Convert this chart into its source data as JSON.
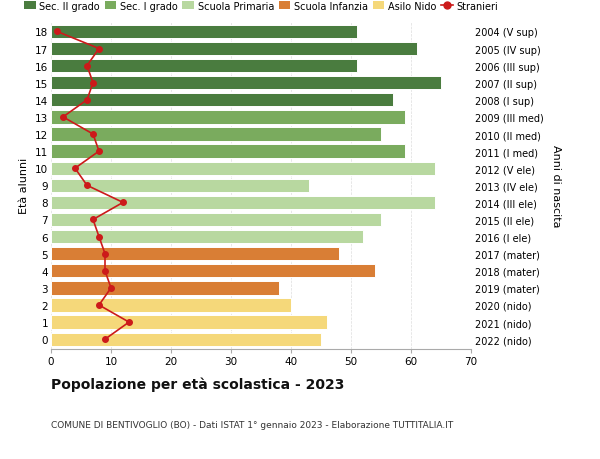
{
  "ages": [
    18,
    17,
    16,
    15,
    14,
    13,
    12,
    11,
    10,
    9,
    8,
    7,
    6,
    5,
    4,
    3,
    2,
    1,
    0
  ],
  "right_labels": [
    "2004 (V sup)",
    "2005 (IV sup)",
    "2006 (III sup)",
    "2007 (II sup)",
    "2008 (I sup)",
    "2009 (III med)",
    "2010 (II med)",
    "2011 (I med)",
    "2012 (V ele)",
    "2013 (IV ele)",
    "2014 (III ele)",
    "2015 (II ele)",
    "2016 (I ele)",
    "2017 (mater)",
    "2018 (mater)",
    "2019 (mater)",
    "2020 (nido)",
    "2021 (nido)",
    "2022 (nido)"
  ],
  "bar_values": [
    51,
    61,
    51,
    65,
    57,
    59,
    55,
    59,
    64,
    43,
    64,
    55,
    52,
    48,
    54,
    38,
    40,
    46,
    45
  ],
  "bar_colors": [
    "#4a7c3f",
    "#4a7c3f",
    "#4a7c3f",
    "#4a7c3f",
    "#4a7c3f",
    "#7aab5e",
    "#7aab5e",
    "#7aab5e",
    "#b8d8a0",
    "#b8d8a0",
    "#b8d8a0",
    "#b8d8a0",
    "#b8d8a0",
    "#d97e35",
    "#d97e35",
    "#d97e35",
    "#f5d87a",
    "#f5d87a",
    "#f5d87a"
  ],
  "stranieri_values": [
    1,
    8,
    6,
    7,
    6,
    2,
    7,
    8,
    4,
    6,
    12,
    7,
    8,
    9,
    9,
    10,
    8,
    13,
    9
  ],
  "legend_items": [
    {
      "label": "Sec. II grado",
      "color": "#4a7c3f"
    },
    {
      "label": "Sec. I grado",
      "color": "#7aab5e"
    },
    {
      "label": "Scuola Primaria",
      "color": "#b8d8a0"
    },
    {
      "label": "Scuola Infanzia",
      "color": "#d97e35"
    },
    {
      "label": "Asilo Nido",
      "color": "#f5d87a"
    },
    {
      "label": "Stranieri",
      "color": "#cc1a1a"
    }
  ],
  "ylabel": "Età alunni",
  "right_ylabel": "Anni di nascita",
  "title": "Popolazione per età scolastica - 2023",
  "subtitle": "COMUNE DI BENTIVOGLIO (BO) - Dati ISTAT 1° gennaio 2023 - Elaborazione TUTTITALIA.IT",
  "xlim": [
    0,
    70
  ],
  "xticks": [
    0,
    10,
    20,
    30,
    40,
    50,
    60,
    70
  ],
  "background_color": "#ffffff",
  "grid_color": "#dddddd",
  "bar_height": 0.78
}
